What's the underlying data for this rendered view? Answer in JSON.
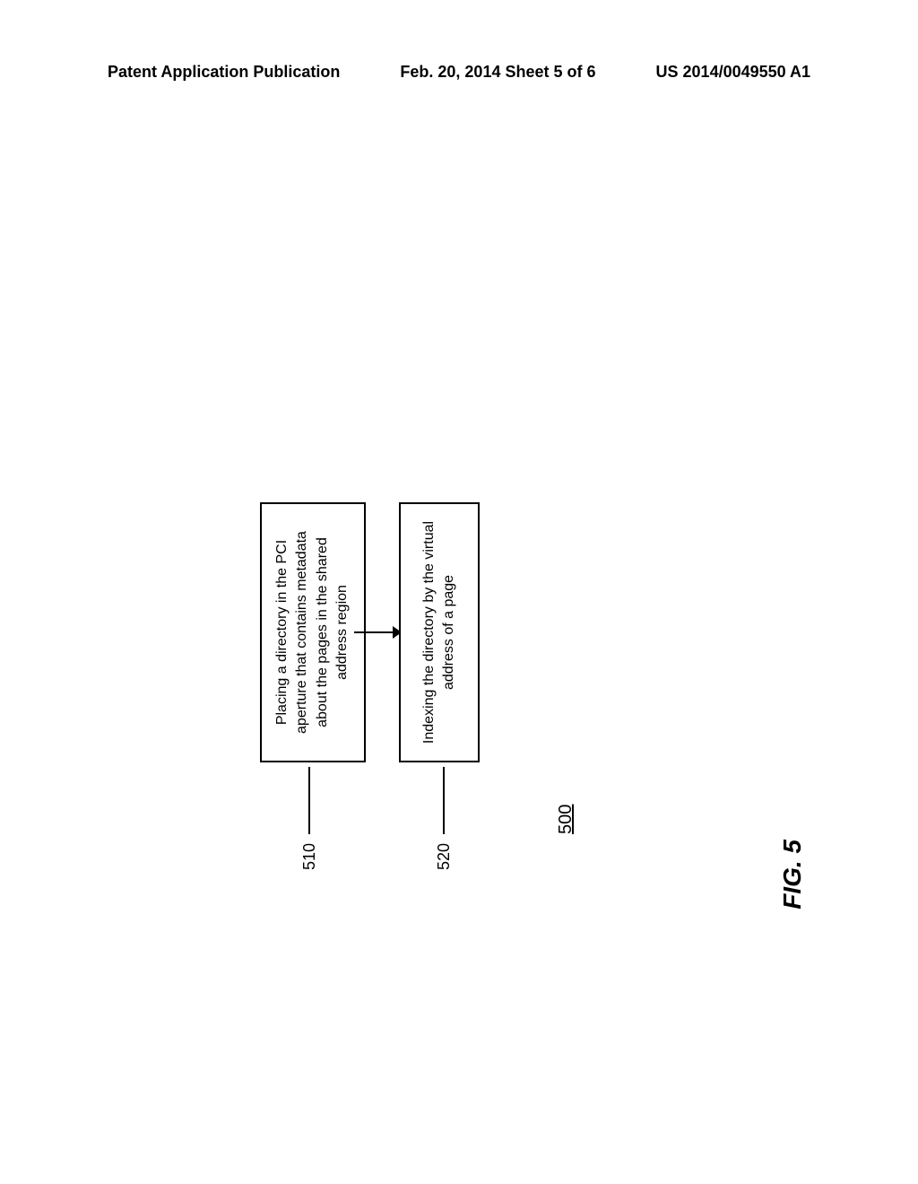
{
  "header": {
    "left": "Patent Application Publication",
    "center": "Feb. 20, 2014  Sheet 5 of 6",
    "right": "US 2014/0049550 A1"
  },
  "flowchart": {
    "type": "flowchart",
    "orientation": "rotated-90",
    "figure_label": "FIG. 5",
    "figure_ref": "500",
    "nodes": [
      {
        "id": "510",
        "ref": "510",
        "text": "Placing a directory in the PCI aperture that contains metadata about the pages in the shared address region",
        "border_color": "#000000",
        "border_width": 2,
        "background_color": "#ffffff",
        "fontsize": 16
      },
      {
        "id": "520",
        "ref": "520",
        "text": "Indexing the directory by the virtual address of a page",
        "border_color": "#000000",
        "border_width": 2,
        "background_color": "#ffffff",
        "fontsize": 16
      }
    ],
    "edges": [
      {
        "from": "510",
        "to": "520",
        "line_color": "#000000",
        "line_width": 2,
        "arrow": true
      }
    ],
    "label_fontsize": 18,
    "figure_label_fontsize": 28,
    "background_color": "#ffffff"
  }
}
